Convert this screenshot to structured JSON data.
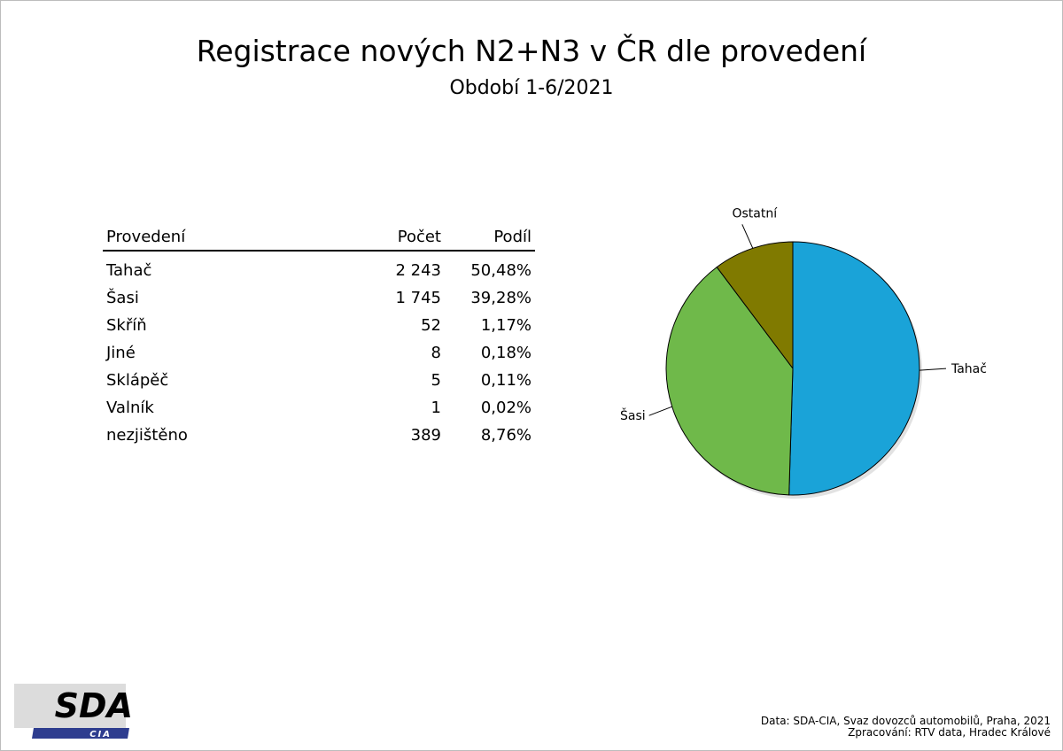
{
  "title": "Registrace nových N2+N3 v ČR dle provedení",
  "subtitle": "Období 1-6/2021",
  "table": {
    "headers": {
      "name": "Provedení",
      "count": "Počet",
      "share": "Podíl"
    },
    "rows": [
      {
        "name": "Tahač",
        "count": "2 243",
        "share": "50,48%"
      },
      {
        "name": "Šasi",
        "count": "1 745",
        "share": "39,28%"
      },
      {
        "name": "Skříň",
        "count": "52",
        "share": "1,17%"
      },
      {
        "name": "Jiné",
        "count": "8",
        "share": "0,18%"
      },
      {
        "name": "Sklápěč",
        "count": "5",
        "share": "0,11%"
      },
      {
        "name": "Valník",
        "count": "1",
        "share": "0,02%"
      },
      {
        "name": "nezjištěno",
        "count": "389",
        "share": "8,76%"
      }
    ]
  },
  "chart_data": {
    "type": "pie",
    "categories": [
      "Tahač",
      "Šasi",
      "Ostatní"
    ],
    "values": [
      50.48,
      39.28,
      10.24
    ],
    "colors": [
      "#1aa3d8",
      "#6fb94a",
      "#807a00"
    ],
    "legend": "none"
  },
  "logo": {
    "text": "SDA",
    "subtext": "CIA",
    "colors": {
      "box": "#dcdcdc",
      "band": "#2e3d8f"
    }
  },
  "source": {
    "line1": "Data: SDA-CIA, Svaz dovozců automobilů, Praha, 2021",
    "line2": "Zpracování: RTV data, Hradec Králové"
  }
}
